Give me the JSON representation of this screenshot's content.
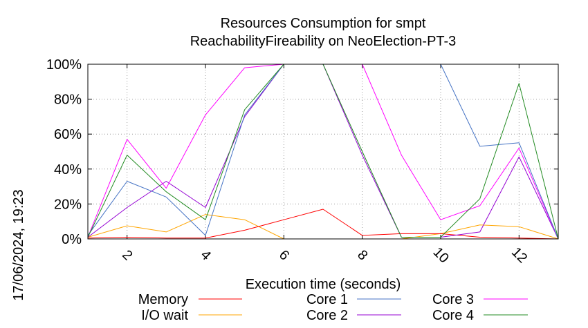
{
  "chart_data": {
    "type": "line",
    "title": "Resources Consumption for smpt",
    "subtitle": "ReachabilityFireability on NeoElection-PT-3",
    "xlabel": "Execution time (seconds)",
    "ylabel": "",
    "side_label": "17/06/2024, 19:23",
    "xlim": [
      1,
      13
    ],
    "ylim": [
      0,
      100
    ],
    "x_ticks": [
      2,
      4,
      6,
      8,
      10,
      12
    ],
    "y_ticks": [
      {
        "value": 0,
        "label": "0%"
      },
      {
        "value": 20,
        "label": "20%"
      },
      {
        "value": 40,
        "label": "40%"
      },
      {
        "value": 60,
        "label": "60%"
      },
      {
        "value": 80,
        "label": "80%"
      },
      {
        "value": 100,
        "label": "100%"
      }
    ],
    "grid": true,
    "legend_position": "bottom",
    "x": [
      1,
      2,
      3,
      4,
      5,
      6,
      7,
      8,
      9,
      10,
      11,
      12,
      13
    ],
    "series": [
      {
        "name": "Memory",
        "color": "#ff0000",
        "values": [
          0.5,
          1,
          0.5,
          0.5,
          5,
          11,
          17,
          2,
          3,
          3,
          1,
          0.5,
          0
        ]
      },
      {
        "name": "I/O wait",
        "color": "#ffa500",
        "values": [
          1,
          7.5,
          4,
          14,
          11,
          0,
          0,
          0,
          0,
          3,
          8,
          7,
          0
        ]
      },
      {
        "name": "Core 1",
        "color": "#4472c4",
        "values": [
          2,
          33,
          24,
          2,
          71,
          100,
          100,
          100,
          100,
          100,
          53,
          55,
          0
        ]
      },
      {
        "name": "Core 2",
        "color": "#9400d3",
        "values": [
          1,
          18,
          33,
          18,
          70,
          100,
          100,
          48,
          1,
          1,
          4,
          47,
          0
        ]
      },
      {
        "name": "Core 3",
        "color": "#ff00ff",
        "values": [
          1,
          57,
          29,
          71,
          98,
          100,
          100,
          100,
          48,
          11,
          19,
          52,
          0
        ]
      },
      {
        "name": "Core 4",
        "color": "#228b22",
        "values": [
          1,
          48,
          27,
          11,
          74,
          100,
          100,
          50,
          1,
          1,
          23,
          89,
          0
        ]
      }
    ]
  }
}
